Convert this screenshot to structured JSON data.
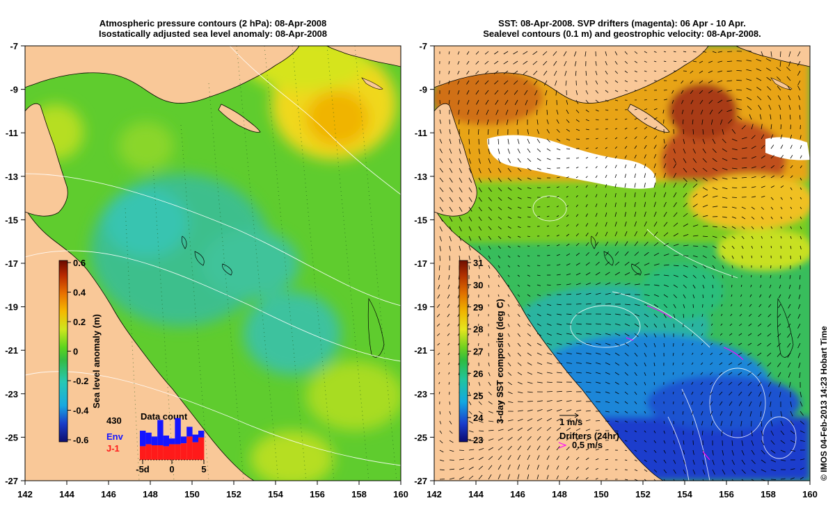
{
  "left_panel": {
    "title_line1": "Atmospheric pressure contours (2 hPa): 08-Apr-2008",
    "title_line2": "Isostatically adjusted sea level anomaly: 08-Apr-2008",
    "x_ticks": [
      "142",
      "144",
      "146",
      "148",
      "150",
      "152",
      "154",
      "156",
      "158",
      "160"
    ],
    "y_ticks": [
      "-7",
      "-9",
      "-11",
      "-13",
      "-15",
      "-17",
      "-19",
      "-21",
      "-23",
      "-25",
      "-27"
    ],
    "colorbar": {
      "label": "Sea level anomaly (m)",
      "ticks": [
        "0.6",
        "0.4",
        "0.2",
        "0",
        "-0.2",
        "-0.4",
        "-0.6"
      ]
    },
    "inset": {
      "title": "Data count",
      "count": "430",
      "env_label": "Env",
      "j1_label": "J-1",
      "x_ticks": [
        "-5d",
        "0",
        "5"
      ],
      "env_color": "#1515ff",
      "j1_color": "#ff1a1a",
      "bars": [
        {
          "total": 3,
          "j1": 1.4
        },
        {
          "total": 2.8,
          "j1": 1.6
        },
        {
          "total": 2.4,
          "j1": 1.5
        },
        {
          "total": 4.1,
          "j1": 1.5
        },
        {
          "total": 2.5,
          "j1": 1.4
        },
        {
          "total": 2.2,
          "j1": 1.6
        },
        {
          "total": 4.3,
          "j1": 1.6
        },
        {
          "total": 2.4,
          "j1": 1.7
        },
        {
          "total": 3.4,
          "j1": 2.4
        },
        {
          "total": 2.6,
          "j1": 1.8
        },
        {
          "total": 3,
          "j1": 2.3
        }
      ]
    }
  },
  "right_panel": {
    "title_line1": "SST: 08-Apr-2008. SVP drifters (magenta): 06 Apr - 10 Apr.",
    "title_line2": "Sealevel contours (0.1 m) and geostrophic velocity: 08-Apr-2008.",
    "x_ticks": [
      "142",
      "144",
      "146",
      "148",
      "150",
      "152",
      "154",
      "156",
      "158",
      "160"
    ],
    "y_ticks": [
      "-7",
      "-9",
      "-11",
      "-13",
      "-15",
      "-17",
      "-19",
      "-21",
      "-23",
      "-25",
      "-27"
    ],
    "colorbar": {
      "label": "3-day SST composite (deg C)",
      "ticks": [
        "31",
        "30",
        "29",
        "28",
        "27",
        "26",
        "25",
        "24",
        "23"
      ]
    },
    "velocity_key": "1 m/s",
    "drifters_key_title": "Drifters (24hr)",
    "drifters_key_speed": "0.5 m/s"
  },
  "credit": "© IMOS 04-Feb-2013 14:23 Hobart Time",
  "colors": {
    "land": "#f9c898",
    "drifters": "#ff00ff",
    "sla_scale": [
      "#0d0d6e",
      "#1a3cc8",
      "#18a8e0",
      "#28c8b4",
      "#33bb44",
      "#5cd41e",
      "#cee61e",
      "#f5b800",
      "#e87000",
      "#b82800",
      "#6a0a00"
    ],
    "sst_scale": [
      "#0a0a70",
      "#1a3ccc",
      "#14a8e0",
      "#20c4a0",
      "#2fbc40",
      "#70d020",
      "#e6e61e",
      "#f0b400",
      "#e07000",
      "#b03000",
      "#701000"
    ]
  }
}
